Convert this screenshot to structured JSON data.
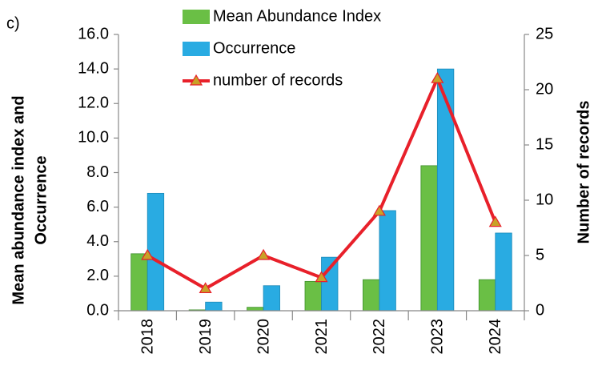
{
  "chart_data": {
    "type": "bar-line",
    "annotation": "c)",
    "ylabel": [
      "Mean abundance index and",
      "Occurrence"
    ],
    "y2label": "Number of records",
    "categories": [
      "2018",
      "2019",
      "2020",
      "2021",
      "2022",
      "2023",
      "2024"
    ],
    "series": [
      {
        "name": "Mean Abundance Index",
        "type": "bar",
        "color": "#6abf45",
        "values": [
          3.3,
          0.05,
          0.2,
          1.7,
          1.8,
          8.4,
          1.8
        ]
      },
      {
        "name": "Occurrence",
        "type": "bar",
        "color": "#29abe2",
        "values": [
          6.8,
          0.5,
          1.45,
          3.1,
          5.8,
          14.0,
          4.5
        ]
      },
      {
        "name": "number of records",
        "type": "line",
        "axis": "y2",
        "color": "#e8202a",
        "marker_color": "#c9a227",
        "values": [
          5,
          2,
          5,
          3,
          9,
          21,
          8
        ]
      }
    ],
    "ylim": [
      0,
      16
    ],
    "yticks": [
      {
        "value": 0,
        "label": "0.0"
      },
      {
        "value": 2,
        "label": "2.0"
      },
      {
        "value": 4,
        "label": "4.0"
      },
      {
        "value": 6,
        "label": "6.0"
      },
      {
        "value": 8,
        "label": "8.0"
      },
      {
        "value": 10,
        "label": "10.0"
      },
      {
        "value": 12,
        "label": "12.0"
      },
      {
        "value": 14,
        "label": "14.0"
      },
      {
        "value": 16,
        "label": "16.0"
      }
    ],
    "y2lim": [
      0,
      25
    ],
    "y2ticks": [
      0,
      5,
      10,
      15,
      20,
      25
    ]
  }
}
